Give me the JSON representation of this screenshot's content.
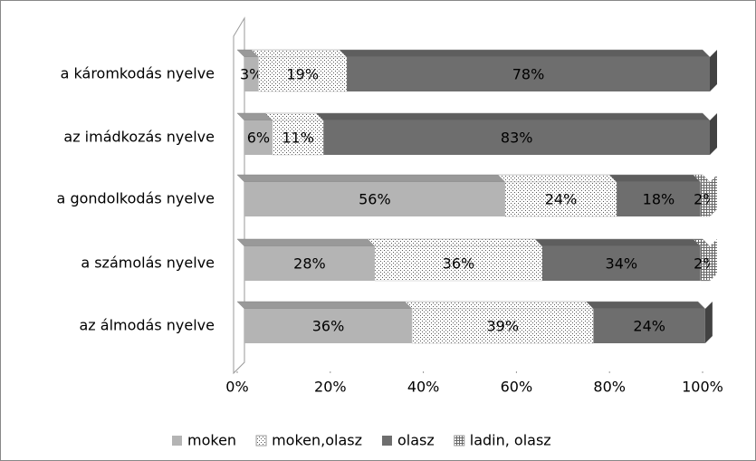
{
  "chart_data": {
    "type": "stacked_barh",
    "categories": [
      "a káromkodás nyelve",
      "az imádkozás nyelve",
      "a gondolkodás nyelve",
      "a számolás nyelve",
      "az álmodás nyelve"
    ],
    "series": [
      {
        "name": "moken",
        "color": "#b4b4b4",
        "values": [
          3,
          6,
          56,
          28,
          36
        ],
        "value_labels": [
          "3%",
          "6%",
          "56%",
          "28%",
          "36%"
        ]
      },
      {
        "name": "moken,olasz",
        "color": "#ffffff",
        "pattern": "dots",
        "values": [
          19,
          11,
          24,
          36,
          39
        ],
        "value_labels": [
          "19%",
          "11%",
          "24%",
          "36%",
          "39%"
        ]
      },
      {
        "name": "olasz",
        "color": "#6e6e6e",
        "values": [
          78,
          83,
          18,
          34,
          24
        ],
        "value_labels": [
          "78%",
          "83%",
          "18%",
          "34%",
          "24%"
        ]
      },
      {
        "name": "ladin, olasz",
        "color": "#ffffff",
        "pattern": "grid",
        "values": [
          null,
          null,
          2,
          2,
          null
        ],
        "value_labels": [
          null,
          null,
          "2%",
          "2%",
          null
        ]
      }
    ],
    "xlim": [
      0,
      100
    ],
    "xticks": [
      {
        "value": 0,
        "label": "0%"
      },
      {
        "value": 20,
        "label": "20%"
      },
      {
        "value": 40,
        "label": "40%"
      },
      {
        "value": 60,
        "label": "60%"
      },
      {
        "value": 80,
        "label": "80%"
      },
      {
        "value": 100,
        "label": "100%"
      }
    ],
    "legend": "bottom"
  }
}
